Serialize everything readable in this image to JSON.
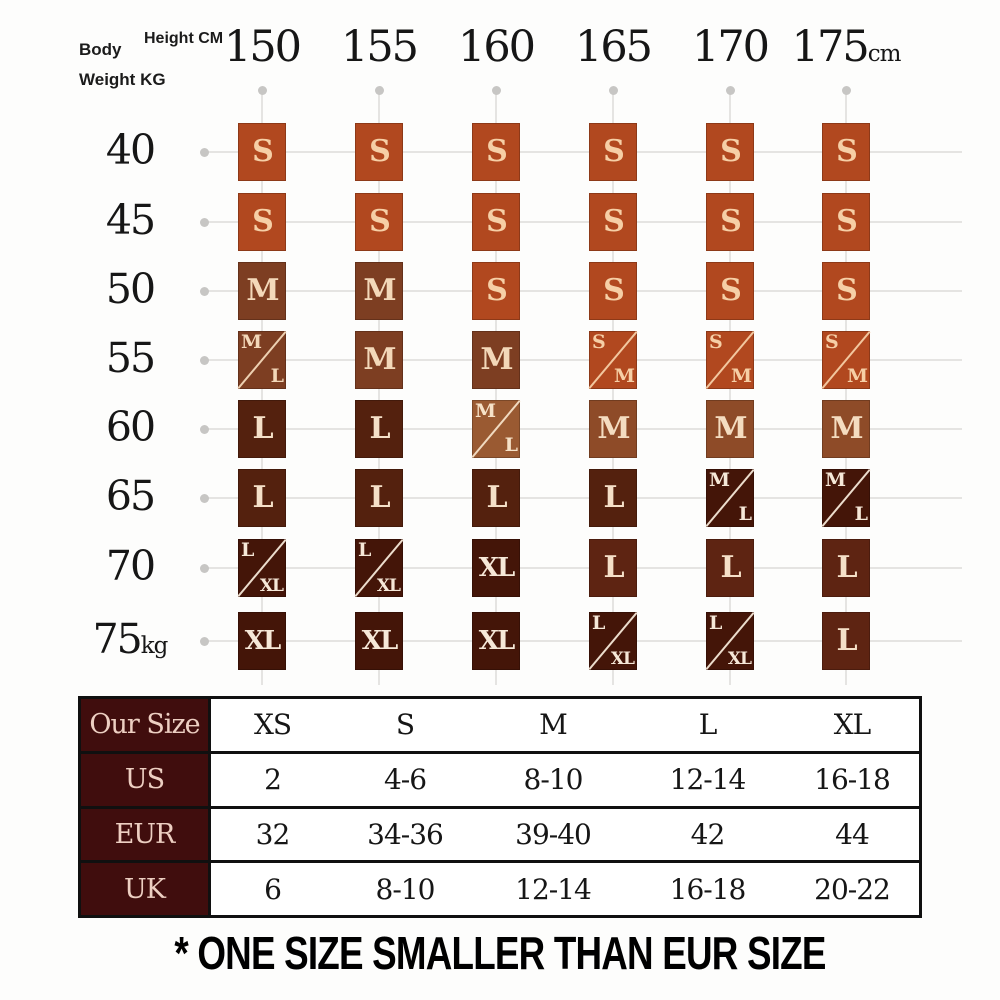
{
  "axis": {
    "body_label": "Body",
    "weight_label": "Weight  KG",
    "height_label": "Height CM",
    "columns": [
      {
        "text": "150",
        "suffix": ""
      },
      {
        "text": "155",
        "suffix": ""
      },
      {
        "text": "160",
        "suffix": ""
      },
      {
        "text": "165",
        "suffix": ""
      },
      {
        "text": "170",
        "suffix": ""
      },
      {
        "text": "175",
        "suffix": "cm"
      }
    ],
    "rows": [
      {
        "text": "40",
        "suffix": ""
      },
      {
        "text": "45",
        "suffix": ""
      },
      {
        "text": "50",
        "suffix": ""
      },
      {
        "text": "55",
        "suffix": ""
      },
      {
        "text": "60",
        "suffix": ""
      },
      {
        "text": "65",
        "suffix": ""
      },
      {
        "text": "70",
        "suffix": ""
      },
      {
        "text": "75",
        "suffix": "kg"
      }
    ]
  },
  "palette": {
    "or": {
      "bg": "#b1481f",
      "fg": "#f6cfa6"
    },
    "br": {
      "bg": "#7d3e22",
      "fg": "#f3d8b9"
    },
    "mb": {
      "bg": "#8e4b28",
      "fg": "#f4dcc0"
    },
    "ml": {
      "bg": "#9a5a32",
      "fg": "#f6e2c8"
    },
    "dk": {
      "bg": "#54210e",
      "fg": "#f5e0c8"
    },
    "dp": {
      "bg": "#441508",
      "fg": "#f6e8d8"
    },
    "lr": {
      "bg": "#5e2412",
      "fg": "#f5e0c8"
    }
  },
  "grid_colors": [
    [
      "or",
      "or",
      "or",
      "or",
      "or",
      "or"
    ],
    [
      "or",
      "or",
      "or",
      "or",
      "or",
      "or"
    ],
    [
      "br",
      "br",
      "or",
      "or",
      "or",
      "or"
    ],
    [
      "br",
      "br",
      "br",
      "or",
      "or",
      "or"
    ],
    [
      "dk",
      "dk",
      "ml",
      "mb",
      "mb",
      "mb"
    ],
    [
      "dk",
      "dk",
      "dk",
      "dk",
      "dp",
      "dp"
    ],
    [
      "dp",
      "dp",
      "dp",
      "lr",
      "lr",
      "lr"
    ],
    [
      "dp",
      "dp",
      "dp",
      "dp",
      "dp",
      "lr"
    ]
  ],
  "chart_data": [
    {
      "type": "heatmap",
      "title": "Size chart: body height (cm) vs body weight (kg)",
      "xlabel": "Height CM",
      "ylabel": "Body Weight KG",
      "x": [
        150,
        155,
        160,
        165,
        170,
        175
      ],
      "y": [
        40,
        45,
        50,
        55,
        60,
        65,
        70,
        75
      ],
      "values": [
        [
          "S",
          "S",
          "S",
          "S",
          "S",
          "S"
        ],
        [
          "S",
          "S",
          "S",
          "S",
          "S",
          "S"
        ],
        [
          "M",
          "M",
          "S",
          "S",
          "S",
          "S"
        ],
        [
          "M/L",
          "M",
          "M",
          "S/M",
          "S/M",
          "S/M"
        ],
        [
          "L",
          "L",
          "M/L",
          "M",
          "M",
          "M"
        ],
        [
          "L",
          "L",
          "L",
          "L",
          "M/L",
          "M/L"
        ],
        [
          "L/XL",
          "L/XL",
          "XL",
          "L",
          "L",
          "L"
        ],
        [
          "XL",
          "XL",
          "XL",
          "L/XL",
          "L/XL",
          "L"
        ]
      ],
      "legend_position": "none",
      "grid": true
    },
    {
      "type": "table",
      "title": "Size conversion table",
      "rows": [
        {
          "label": "Our Size",
          "values": [
            "XS",
            "S",
            "M",
            "L",
            "XL"
          ]
        },
        {
          "label": "US",
          "values": [
            "2",
            "4-6",
            "8-10",
            "12-14",
            "16-18"
          ]
        },
        {
          "label": "EUR",
          "values": [
            "32",
            "34-36",
            "39-40",
            "42",
            "44"
          ]
        },
        {
          "label": "UK",
          "values": [
            "6",
            "8-10",
            "12-14",
            "16-18",
            "20-22"
          ]
        }
      ]
    }
  ],
  "footnote": "* ONE SIZE SMALLER THAN EUR SIZE",
  "colors": {
    "table_label_bg": "#400d0d",
    "table_label_fg": "#edcfc2",
    "table_border": "#101010",
    "grid_line": "#e5e4e2",
    "grid_dot": "#c7c6c4"
  }
}
